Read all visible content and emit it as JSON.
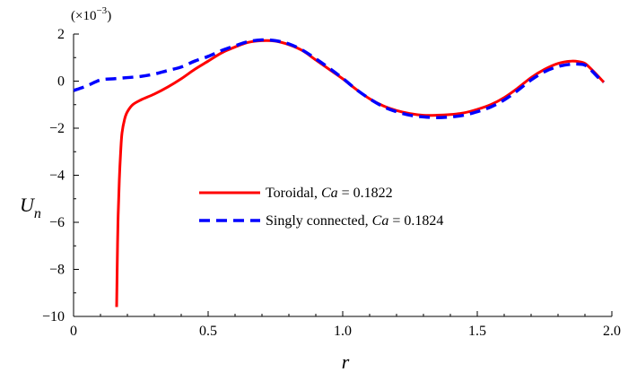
{
  "chart_data": {
    "type": "line",
    "xlabel": "r",
    "ylabel_main": "U",
    "ylabel_sub": "n",
    "y_multiplier_text": "(×10",
    "y_multiplier_exp": "−3",
    "y_multiplier_close": ")",
    "xlim": [
      0,
      2.0
    ],
    "ylim": [
      -10,
      2
    ],
    "x_ticks": [
      0,
      0.5,
      1.0,
      1.5,
      2.0
    ],
    "x_tick_labels": [
      "0",
      "0.5",
      "1.0",
      "1.5",
      "2.0"
    ],
    "y_ticks": [
      2,
      0,
      -2,
      -4,
      -6,
      -8,
      -10
    ],
    "y_tick_labels": [
      "2",
      "0",
      "−2",
      "−4",
      "−6",
      "−8",
      "−10"
    ],
    "legend_position": "center",
    "series": [
      {
        "name_prefix": "Toroidal, ",
        "name_param": "Ca",
        "name_suffix": " = 0.1822",
        "color": "#ff0000",
        "style": "solid",
        "x": [
          0.16,
          0.162,
          0.165,
          0.17,
          0.175,
          0.18,
          0.19,
          0.2,
          0.22,
          0.25,
          0.3,
          0.35,
          0.4,
          0.45,
          0.5,
          0.55,
          0.6,
          0.65,
          0.7,
          0.75,
          0.8,
          0.85,
          0.9,
          0.95,
          1.0,
          1.05,
          1.1,
          1.15,
          1.2,
          1.25,
          1.3,
          1.35,
          1.4,
          1.45,
          1.5,
          1.55,
          1.6,
          1.65,
          1.7,
          1.75,
          1.8,
          1.85,
          1.88,
          1.9,
          1.92,
          1.95,
          1.97
        ],
        "y": [
          -9.6,
          -8.0,
          -6.0,
          -4.2,
          -3.0,
          -2.2,
          -1.6,
          -1.3,
          -1.0,
          -0.8,
          -0.55,
          -0.25,
          0.1,
          0.5,
          0.85,
          1.2,
          1.45,
          1.65,
          1.72,
          1.7,
          1.55,
          1.3,
          0.9,
          0.5,
          0.1,
          -0.35,
          -0.75,
          -1.05,
          -1.25,
          -1.38,
          -1.45,
          -1.45,
          -1.42,
          -1.35,
          -1.2,
          -1.0,
          -0.7,
          -0.3,
          0.15,
          0.5,
          0.75,
          0.85,
          0.82,
          0.75,
          0.55,
          0.2,
          -0.05
        ]
      },
      {
        "name_prefix": "Singly connected, ",
        "name_param": "Ca",
        "name_suffix": " = 0.1824",
        "color": "#0000ff",
        "style": "dashed",
        "x": [
          0,
          0.05,
          0.1,
          0.15,
          0.2,
          0.25,
          0.3,
          0.35,
          0.4,
          0.45,
          0.5,
          0.55,
          0.6,
          0.65,
          0.7,
          0.75,
          0.8,
          0.85,
          0.9,
          0.95,
          1.0,
          1.05,
          1.1,
          1.15,
          1.2,
          1.25,
          1.3,
          1.35,
          1.4,
          1.45,
          1.5,
          1.55,
          1.6,
          1.65,
          1.7,
          1.75,
          1.8,
          1.85,
          1.88,
          1.9,
          1.92,
          1.95,
          1.97
        ],
        "y": [
          -0.4,
          -0.2,
          0.05,
          0.1,
          0.15,
          0.2,
          0.3,
          0.45,
          0.6,
          0.85,
          1.05,
          1.3,
          1.5,
          1.68,
          1.75,
          1.72,
          1.58,
          1.32,
          0.95,
          0.55,
          0.12,
          -0.35,
          -0.75,
          -1.08,
          -1.3,
          -1.45,
          -1.52,
          -1.55,
          -1.52,
          -1.45,
          -1.3,
          -1.1,
          -0.8,
          -0.4,
          0.05,
          0.4,
          0.62,
          0.72,
          0.72,
          0.68,
          0.5,
          0.15,
          -0.05
        ]
      }
    ]
  }
}
